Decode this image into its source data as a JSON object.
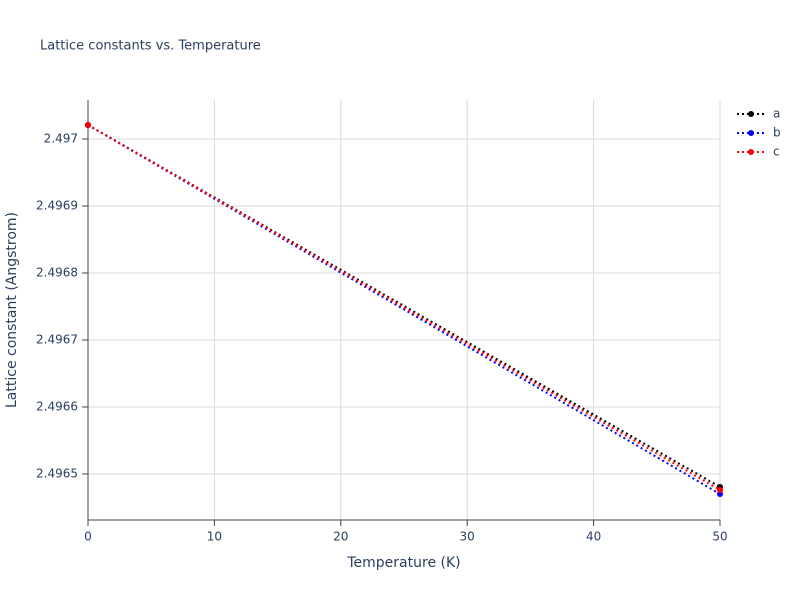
{
  "chart_data": {
    "type": "line",
    "title": "Lattice constants vs. Temperature",
    "x_label": "Temperature (K)",
    "y_label": "Lattice constant (Angstrom)",
    "x": [
      0,
      50
    ],
    "series": [
      {
        "name": "a",
        "color": "#000000",
        "values": [
          2.4970209,
          2.4964806
        ]
      },
      {
        "name": "b",
        "color": "#0000ff",
        "values": [
          2.4970209,
          2.4964701
        ]
      },
      {
        "name": "c",
        "color": "#ff0000",
        "values": [
          2.4970209,
          2.4964761
        ]
      }
    ],
    "xlim": [
      0,
      50
    ],
    "xticks": [
      0,
      10,
      20,
      30,
      40,
      50
    ],
    "ylim": [
      2.4964313,
      2.4970582
    ],
    "yticks": [
      2.4965,
      2.4966,
      2.4967,
      2.4968,
      2.4969,
      2.497
    ],
    "grid": true,
    "legend": "top-right"
  }
}
